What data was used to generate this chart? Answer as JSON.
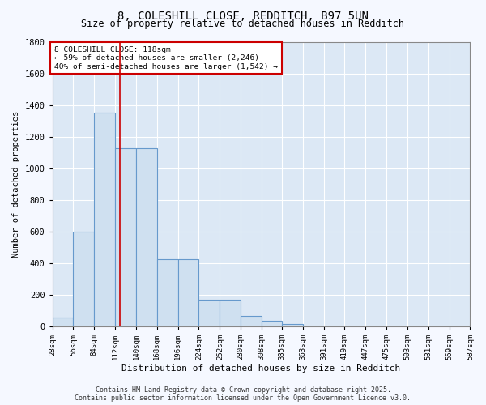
{
  "title1": "8, COLESHILL CLOSE, REDDITCH, B97 5UN",
  "title2": "Size of property relative to detached houses in Redditch",
  "xlabel": "Distribution of detached houses by size in Redditch",
  "ylabel": "Number of detached properties",
  "bin_edges": [
    28,
    56,
    84,
    112,
    140,
    168,
    196,
    224,
    252,
    280,
    308,
    335,
    363,
    391,
    419,
    447,
    475,
    503,
    531,
    559,
    587
  ],
  "bar_heights": [
    55,
    600,
    1350,
    1125,
    1125,
    425,
    425,
    170,
    170,
    65,
    35,
    15,
    0,
    0,
    0,
    0,
    0,
    0,
    0,
    0
  ],
  "bar_color": "#cfe0f0",
  "bar_edge_color": "#6699cc",
  "bar_edge_width": 0.8,
  "red_line_x": 118,
  "ylim": [
    0,
    1800
  ],
  "yticks": [
    0,
    200,
    400,
    600,
    800,
    1000,
    1200,
    1400,
    1600,
    1800
  ],
  "annotation_text": "8 COLESHILL CLOSE: 118sqm\n← 59% of detached houses are smaller (2,246)\n40% of semi-detached houses are larger (1,542) →",
  "annotation_box_facecolor": "#ffffff",
  "annotation_box_edgecolor": "#cc0000",
  "plot_bg_color": "#dce8f5",
  "fig_bg_color": "#f5f8ff",
  "grid_color": "#ffffff",
  "footer_line1": "Contains HM Land Registry data © Crown copyright and database right 2025.",
  "footer_line2": "Contains public sector information licensed under the Open Government Licence v3.0."
}
